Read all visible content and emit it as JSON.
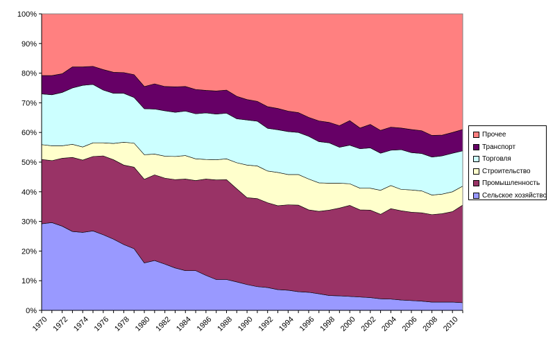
{
  "chart_data": {
    "type": "area",
    "stacked": "percent",
    "x": [
      1970,
      1971,
      1972,
      1973,
      1974,
      1975,
      1976,
      1977,
      1978,
      1979,
      1980,
      1981,
      1982,
      1983,
      1984,
      1985,
      1986,
      1987,
      1988,
      1989,
      1990,
      1991,
      1992,
      1993,
      1994,
      1995,
      1996,
      1997,
      1998,
      1999,
      2000,
      2001,
      2002,
      2003,
      2004,
      2005,
      2006,
      2007,
      2008,
      2009,
      2010,
      2011
    ],
    "x_tick_labels": [
      "1970",
      "1972",
      "1974",
      "1976",
      "1978",
      "1980",
      "1982",
      "1984",
      "1986",
      "1988",
      "1990",
      "1992",
      "1994",
      "1996",
      "1998",
      "2000",
      "2002",
      "2004",
      "2006",
      "2008",
      "2010"
    ],
    "y_tick_labels": [
      "0%",
      "10%",
      "20%",
      "30%",
      "40%",
      "50%",
      "60%",
      "70%",
      "80%",
      "90%",
      "100%"
    ],
    "ylim": [
      0,
      100
    ],
    "grid": false,
    "legend_position": "right",
    "series": [
      {
        "name": "Сельское хозяйство",
        "color": "#9999ff",
        "values": [
          29.2,
          29.6,
          28.4,
          26.6,
          26.3,
          26.8,
          25.5,
          24.0,
          22.2,
          20.8,
          16.0,
          16.8,
          15.6,
          14.3,
          13.4,
          13.4,
          11.8,
          10.4,
          10.4,
          9.6,
          8.7,
          8.0,
          7.7,
          7.0,
          6.8,
          6.3,
          6.1,
          5.6,
          5.0,
          4.9,
          4.7,
          4.5,
          4.3,
          3.9,
          3.8,
          3.5,
          3.3,
          3.1,
          2.8,
          2.8,
          2.8,
          2.6
        ]
      },
      {
        "name": "Промышленность",
        "color": "#993366",
        "values": [
          21.7,
          20.9,
          22.9,
          25.0,
          24.4,
          25.1,
          26.6,
          26.8,
          26.8,
          27.5,
          28.2,
          28.9,
          29.0,
          29.8,
          30.9,
          30.4,
          32.5,
          33.6,
          33.7,
          31.4,
          29.3,
          29.7,
          28.6,
          28.3,
          28.8,
          29.2,
          27.8,
          27.8,
          28.8,
          29.6,
          30.7,
          29.4,
          29.5,
          28.5,
          30.5,
          30.1,
          29.8,
          29.8,
          29.5,
          29.8,
          30.5,
          32.9
        ]
      },
      {
        "name": "Строительство",
        "color": "#ffffcc",
        "values": [
          5.0,
          5.0,
          4.2,
          4.4,
          4.4,
          4.6,
          4.4,
          5.5,
          7.7,
          8.1,
          8.3,
          7.0,
          7.4,
          7.8,
          7.9,
          7.3,
          6.6,
          6.8,
          7.0,
          8.8,
          11.0,
          11.0,
          10.7,
          11.2,
          10.2,
          10.3,
          10.4,
          9.6,
          9.1,
          8.4,
          7.3,
          7.3,
          7.4,
          8.1,
          7.8,
          7.2,
          7.5,
          7.4,
          6.6,
          6.6,
          6.7,
          6.4
        ]
      },
      {
        "name": "Торговля",
        "color": "#ccffff",
        "values": [
          17.1,
          17.2,
          18.0,
          19.0,
          20.8,
          19.7,
          17.8,
          16.9,
          16.5,
          15.4,
          15.5,
          15.2,
          15.3,
          14.9,
          15.0,
          15.2,
          15.7,
          15.4,
          15.4,
          14.8,
          15.2,
          15.1,
          14.4,
          14.4,
          14.5,
          14.2,
          14.4,
          13.9,
          13.6,
          12.1,
          13.0,
          13.3,
          13.6,
          12.5,
          11.9,
          13.4,
          12.6,
          12.6,
          12.8,
          12.9,
          13.0,
          11.9
        ]
      },
      {
        "name": "Транспорт",
        "color": "#660066",
        "values": [
          6.2,
          6.5,
          6.3,
          7.1,
          6.2,
          6.1,
          6.9,
          7.1,
          7.0,
          7.7,
          7.5,
          8.5,
          8.2,
          8.6,
          8.3,
          8.2,
          7.6,
          7.8,
          7.8,
          7.6,
          6.9,
          6.7,
          7.3,
          7.2,
          6.9,
          6.7,
          6.4,
          7.0,
          6.9,
          7.3,
          8.3,
          7.0,
          7.9,
          7.7,
          7.8,
          7.3,
          7.8,
          7.7,
          7.3,
          7.0,
          7.0,
          7.2
        ]
      },
      {
        "name": "Прочее",
        "color": "#ff8080",
        "values": [
          20.8,
          20.8,
          20.2,
          17.9,
          17.9,
          17.7,
          18.8,
          19.7,
          19.8,
          20.5,
          24.5,
          23.6,
          24.5,
          24.6,
          24.5,
          25.5,
          25.8,
          26.0,
          25.7,
          27.8,
          28.9,
          29.5,
          31.3,
          31.9,
          32.8,
          33.3,
          34.9,
          36.1,
          36.6,
          37.7,
          36.0,
          38.5,
          37.3,
          39.3,
          38.2,
          38.5,
          39.0,
          39.4,
          41.0,
          40.9,
          40.0,
          39.0
        ]
      }
    ]
  }
}
